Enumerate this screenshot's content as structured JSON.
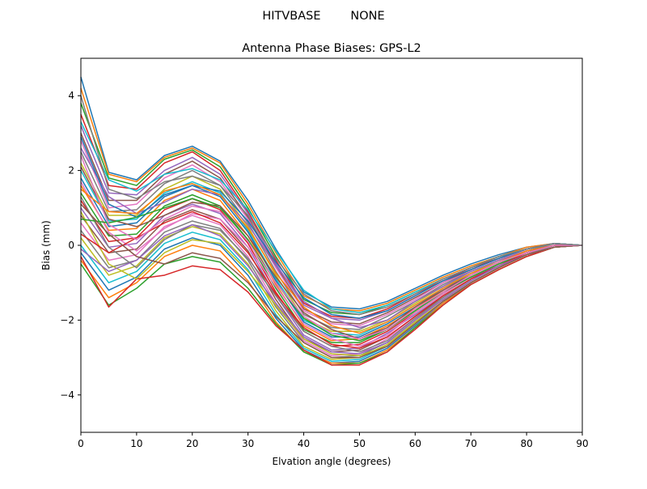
{
  "chart_data": {
    "type": "line",
    "suptitle": "HITVBASE        NONE",
    "title": "Antenna Phase Biases: GPS-L2",
    "xlabel": "Elvation angle (degrees)",
    "ylabel": "Bias (mm)",
    "xlim": [
      0,
      90
    ],
    "ylim": [
      -5,
      5
    ],
    "xticks": [
      0,
      10,
      20,
      30,
      40,
      50,
      60,
      70,
      80,
      90
    ],
    "yticks": [
      -4,
      -2,
      0,
      2,
      4
    ],
    "ytick_labels": [
      "−4",
      "−2",
      "0",
      "2",
      "4"
    ],
    "grid": false,
    "legend": "none",
    "x": [
      0,
      5,
      10,
      15,
      20,
      25,
      30,
      35,
      40,
      45,
      50,
      55,
      60,
      65,
      70,
      75,
      80,
      85,
      90
    ],
    "series": [
      {
        "values": [
          4.5,
          1.95,
          1.75,
          2.4,
          2.65,
          2.25,
          1.2,
          -0.1,
          -1.25,
          -1.65,
          -1.7,
          -1.5,
          -1.15,
          -0.8,
          -0.5,
          -0.25,
          -0.05,
          0.05,
          0.0
        ]
      },
      {
        "values": [
          4.2,
          1.9,
          1.7,
          2.35,
          2.6,
          2.2,
          1.1,
          -0.2,
          -1.35,
          -1.7,
          -1.75,
          -1.55,
          -1.2,
          -0.85,
          -0.55,
          -0.3,
          -0.05,
          0.05,
          0.0
        ]
      },
      {
        "values": [
          3.8,
          1.8,
          1.6,
          2.3,
          2.55,
          2.1,
          1.0,
          -0.3,
          -1.45,
          -1.8,
          -1.85,
          -1.6,
          -1.25,
          -0.9,
          -0.6,
          -0.3,
          -0.1,
          0.05,
          0.0
        ]
      },
      {
        "values": [
          3.5,
          1.6,
          1.5,
          2.2,
          2.5,
          2.0,
          0.9,
          -0.4,
          -1.55,
          -1.9,
          -1.95,
          -1.7,
          -1.3,
          -0.95,
          -0.6,
          -0.35,
          -0.1,
          0.05,
          0.0
        ]
      },
      {
        "values": [
          3.2,
          1.4,
          1.35,
          2.0,
          2.35,
          1.9,
          0.85,
          -0.5,
          -1.6,
          -1.95,
          -2.0,
          -1.75,
          -1.35,
          -0.95,
          -0.65,
          -0.35,
          -0.1,
          0.05,
          0.0
        ]
      },
      {
        "values": [
          3.0,
          1.2,
          1.2,
          1.9,
          2.25,
          1.8,
          0.75,
          -0.55,
          -1.7,
          -2.05,
          -2.1,
          -1.8,
          -1.4,
          -1.0,
          -0.65,
          -0.35,
          -0.1,
          0.05,
          0.0
        ]
      },
      {
        "values": [
          2.8,
          1.0,
          1.1,
          1.8,
          2.15,
          1.7,
          0.7,
          -0.6,
          -1.75,
          -2.1,
          -2.15,
          -1.85,
          -1.45,
          -1.0,
          -0.7,
          -0.4,
          -0.1,
          0.05,
          0.0
        ]
      },
      {
        "values": [
          2.5,
          0.9,
          0.95,
          1.65,
          2.0,
          1.6,
          0.6,
          -0.7,
          -1.85,
          -2.2,
          -2.25,
          -1.9,
          -1.5,
          -1.05,
          -0.7,
          -0.4,
          -0.15,
          0.05,
          0.0
        ]
      },
      {
        "values": [
          2.2,
          0.8,
          0.8,
          1.5,
          1.85,
          1.5,
          0.5,
          -0.8,
          -1.95,
          -2.3,
          -2.3,
          -2.0,
          -1.55,
          -1.1,
          -0.75,
          -0.4,
          -0.15,
          0.0,
          0.0
        ]
      },
      {
        "values": [
          2.0,
          0.65,
          0.7,
          1.4,
          1.7,
          1.4,
          0.4,
          -0.9,
          -2.0,
          -2.35,
          -2.4,
          -2.05,
          -1.6,
          -1.15,
          -0.75,
          -0.45,
          -0.15,
          0.0,
          0.0
        ]
      },
      {
        "values": [
          1.8,
          0.5,
          0.6,
          1.3,
          1.6,
          1.3,
          0.35,
          -0.95,
          -2.05,
          -2.45,
          -2.45,
          -2.1,
          -1.65,
          -1.15,
          -0.8,
          -0.45,
          -0.15,
          0.0,
          0.0
        ]
      },
      {
        "values": [
          1.6,
          0.4,
          0.45,
          1.2,
          1.5,
          1.2,
          0.25,
          -1.05,
          -2.15,
          -2.55,
          -2.5,
          -2.15,
          -1.7,
          -1.2,
          -0.8,
          -0.45,
          -0.15,
          0.0,
          0.0
        ]
      },
      {
        "values": [
          1.4,
          0.25,
          0.3,
          1.05,
          1.35,
          1.05,
          0.15,
          -1.15,
          -2.25,
          -2.6,
          -2.6,
          -2.25,
          -1.75,
          -1.25,
          -0.85,
          -0.5,
          -0.2,
          0.0,
          0.0
        ]
      },
      {
        "values": [
          1.2,
          0.1,
          0.2,
          0.95,
          1.25,
          0.95,
          0.05,
          -1.25,
          -2.3,
          -2.7,
          -2.65,
          -2.3,
          -1.8,
          -1.3,
          -0.85,
          -0.5,
          -0.2,
          0.0,
          0.0
        ]
      },
      {
        "values": [
          1.0,
          -0.05,
          0.05,
          0.8,
          1.1,
          0.85,
          -0.05,
          -1.35,
          -2.4,
          -2.8,
          -2.75,
          -2.35,
          -1.85,
          -1.35,
          -0.9,
          -0.5,
          -0.2,
          0.0,
          0.0
        ]
      },
      {
        "values": [
          0.8,
          -0.2,
          -0.1,
          0.65,
          0.95,
          0.7,
          -0.15,
          -1.45,
          -2.5,
          -2.85,
          -2.8,
          -2.45,
          -1.9,
          -1.4,
          -0.9,
          -0.55,
          -0.2,
          0.0,
          0.0
        ]
      },
      {
        "values": [
          0.6,
          -0.4,
          -0.25,
          0.5,
          0.8,
          0.55,
          -0.3,
          -1.55,
          -2.55,
          -2.95,
          -2.9,
          -2.5,
          -1.95,
          -1.45,
          -0.95,
          -0.55,
          -0.25,
          0.0,
          0.0
        ]
      },
      {
        "values": [
          0.4,
          -0.6,
          -0.4,
          0.35,
          0.65,
          0.45,
          -0.4,
          -1.65,
          -2.6,
          -3.0,
          -2.95,
          -2.6,
          -2.0,
          -1.45,
          -0.95,
          -0.55,
          -0.25,
          0.0,
          0.0
        ]
      },
      {
        "values": [
          0.2,
          -0.8,
          -0.55,
          0.2,
          0.5,
          0.3,
          -0.5,
          -1.75,
          -2.7,
          -3.05,
          -3.0,
          -2.65,
          -2.05,
          -1.5,
          -1.0,
          -0.6,
          -0.25,
          -0.05,
          0.0
        ]
      },
      {
        "values": [
          0.0,
          -1.0,
          -0.7,
          0.05,
          0.35,
          0.15,
          -0.65,
          -1.85,
          -2.75,
          -3.1,
          -3.05,
          -2.7,
          -2.1,
          -1.5,
          -1.0,
          -0.6,
          -0.25,
          -0.05,
          0.0
        ]
      },
      {
        "values": [
          -0.2,
          -1.2,
          -0.85,
          -0.1,
          0.2,
          0.0,
          -0.8,
          -1.95,
          -2.8,
          -3.15,
          -3.1,
          -2.75,
          -2.15,
          -1.55,
          -1.0,
          -0.6,
          -0.25,
          -0.05,
          0.0
        ]
      },
      {
        "values": [
          -0.4,
          -1.4,
          -1.0,
          -0.3,
          0.0,
          -0.15,
          -0.95,
          -2.05,
          -2.85,
          -3.15,
          -3.15,
          -2.8,
          -2.2,
          -1.55,
          -1.05,
          -0.65,
          -0.3,
          -0.05,
          0.0
        ]
      },
      {
        "values": [
          -0.5,
          -1.6,
          -1.15,
          -0.5,
          -0.3,
          -0.45,
          -1.15,
          -2.1,
          -2.85,
          -3.2,
          -3.15,
          -2.85,
          -2.2,
          -1.6,
          -1.05,
          -0.65,
          -0.3,
          -0.05,
          0.0
        ]
      },
      {
        "values": [
          -0.3,
          -1.65,
          -0.9,
          -0.8,
          -0.55,
          -0.65,
          -1.25,
          -2.15,
          -2.8,
          -3.2,
          -3.2,
          -2.85,
          -2.25,
          -1.6,
          -1.05,
          -0.65,
          -0.3,
          -0.05,
          0.0
        ]
      },
      {
        "values": [
          2.6,
          1.3,
          0.85,
          1.15,
          1.5,
          1.35,
          0.55,
          -0.55,
          -1.5,
          -1.95,
          -2.2,
          -2.0,
          -1.5,
          -1.1,
          -0.7,
          -0.4,
          -0.15,
          0.0,
          0.0
        ]
      },
      {
        "values": [
          2.1,
          0.7,
          0.5,
          0.8,
          1.15,
          1.05,
          0.25,
          -0.85,
          -1.8,
          -2.25,
          -2.5,
          -2.2,
          -1.65,
          -1.2,
          -0.8,
          -0.45,
          -0.2,
          0.0,
          0.0
        ]
      },
      {
        "values": [
          1.7,
          0.35,
          -0.15,
          0.45,
          0.85,
          0.7,
          -0.05,
          -1.1,
          -2.1,
          -2.5,
          -2.7,
          -2.4,
          -1.8,
          -1.3,
          -0.85,
          -0.5,
          -0.2,
          0.0,
          0.0
        ]
      },
      {
        "values": [
          1.3,
          -0.05,
          -0.6,
          0.15,
          0.55,
          0.4,
          -0.35,
          -1.35,
          -2.3,
          -2.7,
          -2.85,
          -2.55,
          -1.95,
          -1.4,
          -0.9,
          -0.55,
          -0.25,
          0.0,
          0.0
        ]
      },
      {
        "values": [
          0.9,
          -0.5,
          -0.9,
          -0.2,
          0.15,
          0.05,
          -0.7,
          -1.6,
          -2.5,
          -2.9,
          -2.95,
          -2.7,
          -2.05,
          -1.5,
          -1.0,
          -0.6,
          -0.25,
          -0.05,
          0.0
        ]
      },
      {
        "values": [
          3.3,
          1.75,
          1.45,
          1.9,
          2.05,
          1.75,
          0.95,
          -0.15,
          -1.2,
          -1.7,
          -1.8,
          -1.6,
          -1.25,
          -0.9,
          -0.6,
          -0.3,
          -0.1,
          0.05,
          0.0
        ]
      },
      {
        "values": [
          2.9,
          1.1,
          0.75,
          1.35,
          1.6,
          1.45,
          0.65,
          -0.45,
          -1.4,
          -1.85,
          -1.95,
          -1.75,
          -1.35,
          -0.95,
          -0.65,
          -0.35,
          -0.1,
          0.05,
          0.0
        ]
      },
      {
        "values": [
          1.5,
          0.9,
          0.85,
          1.45,
          1.65,
          1.35,
          0.45,
          -0.75,
          -1.65,
          -2.15,
          -2.35,
          -2.05,
          -1.6,
          -1.15,
          -0.75,
          -0.45,
          -0.15,
          0.0,
          0.0
        ]
      },
      {
        "values": [
          0.7,
          0.6,
          0.75,
          1.0,
          1.25,
          1.0,
          0.15,
          -1.0,
          -1.95,
          -2.4,
          -2.55,
          -2.25,
          -1.75,
          -1.25,
          -0.85,
          -0.5,
          -0.2,
          0.0,
          0.0
        ]
      },
      {
        "values": [
          0.3,
          -0.2,
          0.2,
          0.6,
          0.9,
          0.6,
          -0.2,
          -1.3,
          -2.2,
          -2.65,
          -2.75,
          -2.45,
          -1.9,
          -1.35,
          -0.9,
          -0.55,
          -0.2,
          0.0,
          0.0
        ]
      },
      {
        "values": [
          -0.1,
          -0.7,
          -0.4,
          0.25,
          0.55,
          0.25,
          -0.55,
          -1.55,
          -2.45,
          -2.85,
          -2.9,
          -2.6,
          -2.0,
          -1.45,
          -0.95,
          -0.55,
          -0.25,
          -0.05,
          0.0
        ]
      },
      {
        "values": [
          1.1,
          0.3,
          -0.3,
          -0.5,
          -0.2,
          -0.35,
          -1.0,
          -1.9,
          -2.6,
          -3.0,
          -3.0,
          -2.7,
          -2.1,
          -1.5,
          -1.0,
          -0.6,
          -0.25,
          -0.05,
          0.0
        ]
      },
      {
        "values": [
          2.4,
          0.55,
          0.15,
          0.7,
          1.05,
          0.9,
          0.1,
          -1.0,
          -1.9,
          -2.35,
          -2.5,
          -2.25,
          -1.7,
          -1.25,
          -0.8,
          -0.45,
          -0.2,
          0.0,
          0.0
        ]
      },
      {
        "values": [
          4.0,
          1.5,
          1.25,
          1.7,
          1.85,
          1.6,
          0.8,
          -0.35,
          -1.3,
          -1.75,
          -1.85,
          -1.65,
          -1.3,
          -0.9,
          -0.6,
          -0.3,
          -0.1,
          0.05,
          0.0
        ]
      }
    ]
  },
  "colors": [
    "#1f77b4",
    "#ff7f0e",
    "#2ca02c",
    "#d62728",
    "#9467bd",
    "#8c564b",
    "#e377c2",
    "#7f7f7f",
    "#bcbd22",
    "#17becf"
  ]
}
